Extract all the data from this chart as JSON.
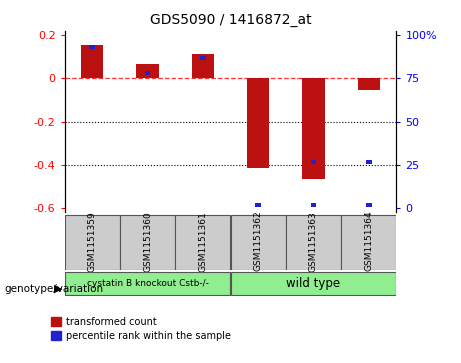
{
  "title": "GDS5090 / 1416872_at",
  "samples": [
    "GSM1151359",
    "GSM1151360",
    "GSM1151361",
    "GSM1151362",
    "GSM1151363",
    "GSM1151364"
  ],
  "red_values": [
    0.155,
    0.065,
    0.115,
    -0.415,
    -0.465,
    -0.055
  ],
  "blue_top_values": [
    0.155,
    0.035,
    0.105,
    -0.595,
    -0.595,
    -0.595
  ],
  "blue_right_values": [
    null,
    null,
    null,
    null,
    -0.395,
    -0.395
  ],
  "ylim": [
    -0.62,
    0.22
  ],
  "yticks_left": [
    0.2,
    0.0,
    -0.2,
    -0.4,
    -0.6
  ],
  "ytick_left_labels": [
    "0.2",
    "0",
    "-0.2",
    "-0.4",
    "-0.6"
  ],
  "yticks_right": [
    100,
    75,
    50,
    25,
    0
  ],
  "ytick_right_labels": [
    "100%",
    "75",
    "50",
    "25",
    "0"
  ],
  "group1_label": "cystatin B knockout Cstb-/-",
  "group2_label": "wild type",
  "bar_color_red": "#bb1111",
  "bar_color_blue": "#2222cc",
  "legend1": "transformed count",
  "legend2": "percentile rank within the sample",
  "bar_width": 0.4,
  "blue_bar_width": 0.1,
  "blue_bar_height": 0.018
}
